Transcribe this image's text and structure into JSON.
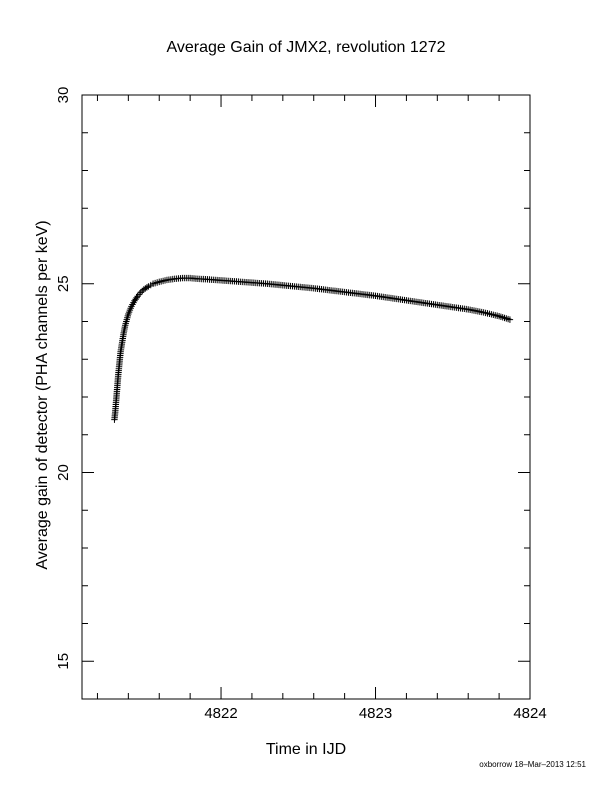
{
  "chart_data": {
    "type": "scatter",
    "title": "Average Gain of JMX2, revolution 1272",
    "xlabel": "Time in IJD",
    "ylabel": "Average gain of detector (PHA channels per keV)",
    "xlim": [
      4821.1,
      4824.0
    ],
    "ylim": [
      14.0,
      30.0
    ],
    "xticks": [
      4822,
      4823,
      4824
    ],
    "xtick_labels": [
      "4822",
      "4823",
      "4824"
    ],
    "yticks": [
      15,
      20,
      25,
      30
    ],
    "ytick_labels": [
      "15",
      "20",
      "25",
      "30"
    ],
    "grid": false,
    "marker": "+",
    "series": [
      {
        "x": [
          4821.31,
          4821.315,
          4821.32,
          4821.325,
          4821.33,
          4821.335,
          4821.34,
          4821.345,
          4821.35,
          4821.36,
          4821.37,
          4821.38,
          4821.39,
          4821.4,
          4821.42,
          4821.44,
          4821.46,
          4821.48,
          4821.5,
          4821.53,
          4821.56,
          4821.6,
          4821.65,
          4821.7,
          4821.75,
          4821.8,
          4821.85,
          4821.9,
          4822.0,
          4822.1,
          4822.2,
          4822.3,
          4822.4,
          4822.5,
          4822.6,
          4822.7,
          4822.8,
          4822.9,
          4823.0,
          4823.1,
          4823.2,
          4823.3,
          4823.4,
          4823.5,
          4823.6,
          4823.7,
          4823.8,
          4823.87
        ],
        "y": [
          21.4,
          21.6,
          21.85,
          22.1,
          22.35,
          22.6,
          22.8,
          23.0,
          23.2,
          23.45,
          23.7,
          23.9,
          24.05,
          24.2,
          24.4,
          24.55,
          24.67,
          24.77,
          24.85,
          24.93,
          25.0,
          25.05,
          25.1,
          25.13,
          25.15,
          25.15,
          25.13,
          25.12,
          25.09,
          25.06,
          25.03,
          25.0,
          24.96,
          24.92,
          24.88,
          24.83,
          24.78,
          24.73,
          24.68,
          24.62,
          24.56,
          24.5,
          24.44,
          24.38,
          24.32,
          24.24,
          24.14,
          24.05
        ]
      }
    ]
  },
  "footer": "oxborrow 18–Mar–2013 12:51"
}
